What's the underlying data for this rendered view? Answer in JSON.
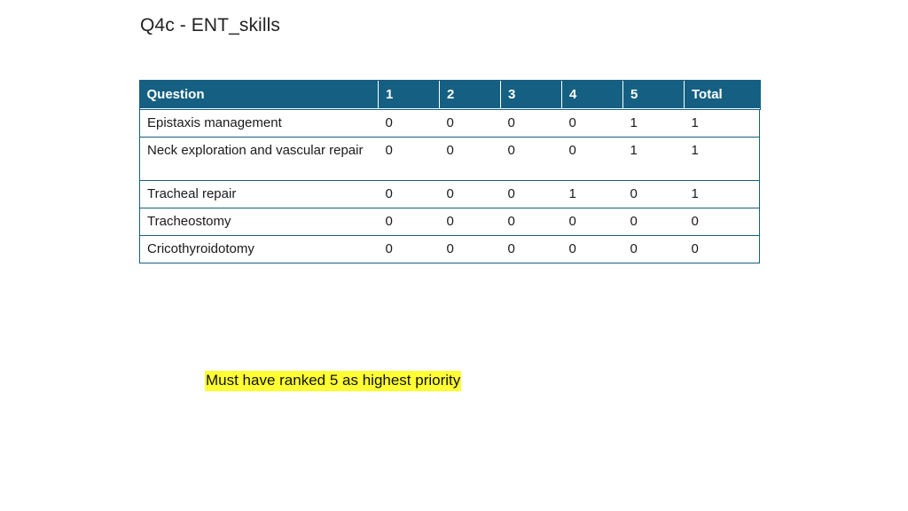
{
  "slide": {
    "title": "Q4c - ENT_skills"
  },
  "table": {
    "headers": {
      "question": "Question",
      "c1": "1",
      "c2": "2",
      "c3": "3",
      "c4": "4",
      "c5": "5",
      "total": "Total"
    },
    "rows": [
      {
        "question": "Epistaxis management",
        "c1": "0",
        "c2": "0",
        "c3": "0",
        "c4": "0",
        "c5": "1",
        "total": "1"
      },
      {
        "question": "Neck exploration and vascular repair",
        "c1": "0",
        "c2": "0",
        "c3": "0",
        "c4": "0",
        "c5": "1",
        "total": "1"
      },
      {
        "question": "Tracheal repair",
        "c1": "0",
        "c2": "0",
        "c3": "0",
        "c4": "1",
        "c5": "0",
        "total": "1"
      },
      {
        "question": "Tracheostomy",
        "c1": "0",
        "c2": "0",
        "c3": "0",
        "c4": "0",
        "c5": "0",
        "total": "0"
      },
      {
        "question": "Cricothyroidotomy",
        "c1": "0",
        "c2": "0",
        "c3": "0",
        "c4": "0",
        "c5": "0",
        "total": "0"
      }
    ]
  },
  "note": {
    "text": "Must have ranked 5 as highest priority",
    "highlight_color": "#ffff33"
  },
  "colors": {
    "header_bg": "#156082",
    "header_text": "#ffffff",
    "border": "#156082"
  }
}
